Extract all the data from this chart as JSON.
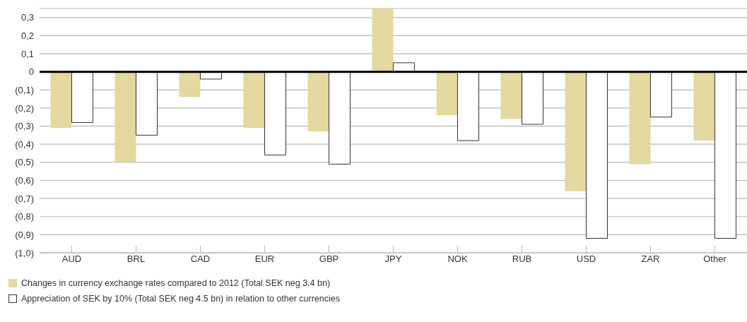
{
  "chart_data": {
    "type": "bar",
    "categories": [
      "AUD",
      "BRL",
      "CAD",
      "EUR",
      "GBP",
      "JPY",
      "NOK",
      "RUB",
      "USD",
      "ZAR",
      "Other"
    ],
    "series": [
      {
        "name": "Changes in currency exchange rates compared to 2012 (Total SEK neg 3.4 bn)",
        "color": "#e3d89e",
        "values": [
          -0.31,
          -0.5,
          -0.14,
          -0.31,
          -0.33,
          0.35,
          -0.24,
          -0.26,
          -0.66,
          -0.51,
          -0.38
        ]
      },
      {
        "name": "Appreciation of SEK by 10% (Total SEK neg 4.5 bn) in relation to other currencies",
        "color": "#ffffff",
        "values": [
          -0.28,
          -0.35,
          -0.04,
          -0.46,
          -0.51,
          0.05,
          -0.38,
          -0.29,
          -0.92,
          -0.25,
          -0.92
        ]
      }
    ],
    "ylim": [
      -1.0,
      0.35
    ],
    "yticks": [
      {
        "value": -1.0,
        "label": "(1,0)"
      },
      {
        "value": -0.9,
        "label": "(0,9)"
      },
      {
        "value": -0.8,
        "label": "(0,8)"
      },
      {
        "value": -0.7,
        "label": "(0,7)"
      },
      {
        "value": -0.6,
        "label": "(0,6)"
      },
      {
        "value": -0.5,
        "label": "(0,5)"
      },
      {
        "value": -0.4,
        "label": "(0,4)"
      },
      {
        "value": -0.3,
        "label": "(0,3)"
      },
      {
        "value": -0.2,
        "label": "(0,2)"
      },
      {
        "value": -0.1,
        "label": "(0,1)"
      },
      0,
      {
        "value": 0.1,
        "label": "0,1"
      },
      {
        "value": 0.2,
        "label": "0,2"
      },
      {
        "value": 0.3,
        "label": "0,3"
      }
    ],
    "ref_lines": [
      {
        "axis": "y",
        "value": 0,
        "color": "#000000"
      }
    ],
    "grid": "y",
    "legend": "bottom left"
  }
}
